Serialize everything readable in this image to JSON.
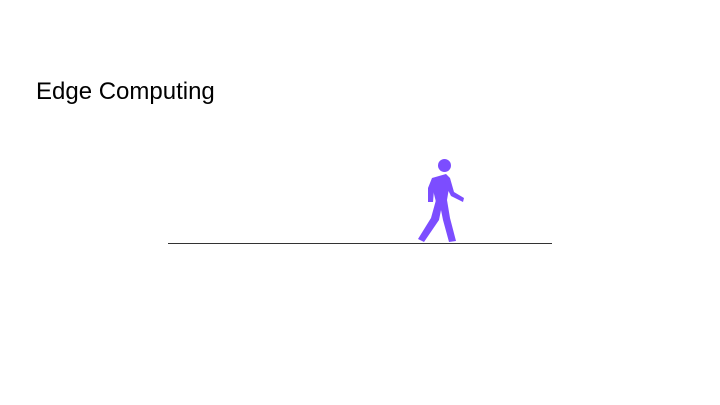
{
  "slide": {
    "title": "Edge Computing"
  },
  "figure": {
    "icon": "walking-person-icon",
    "color": "#7c4dff"
  }
}
